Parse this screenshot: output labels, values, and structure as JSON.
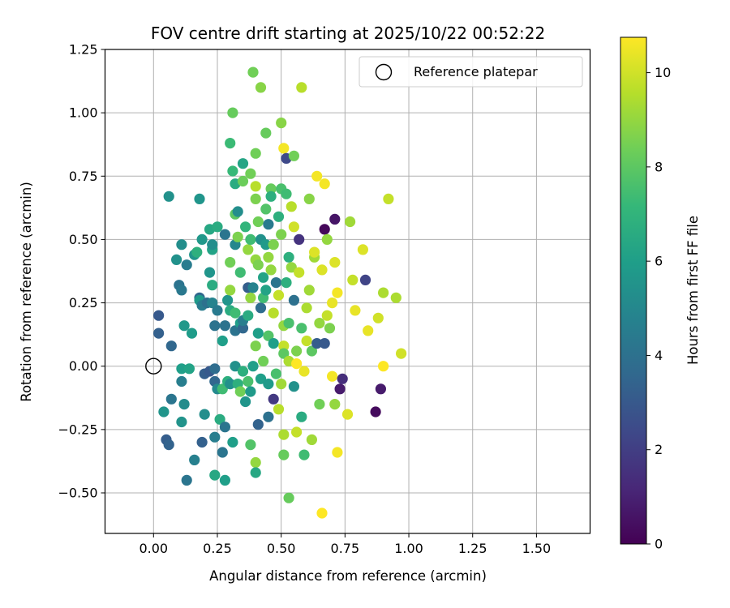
{
  "chart_data": {
    "type": "scatter",
    "title": "FOV centre drift starting at 2025/10/22 00:52:22",
    "xlabel": "Angular distance from reference (arcmin)",
    "ylabel": "Rotation from reference (arcmin)",
    "xlim": [
      -0.19,
      1.71
    ],
    "ylim": [
      -0.66,
      1.25
    ],
    "xticks": [
      0.0,
      0.25,
      0.5,
      0.75,
      1.0,
      1.25,
      1.5
    ],
    "xtick_labels": [
      "0.00",
      "0.25",
      "0.50",
      "0.75",
      "1.00",
      "1.25",
      "1.50"
    ],
    "yticks": [
      -0.5,
      -0.25,
      0.0,
      0.25,
      0.5,
      0.75,
      1.0,
      1.25
    ],
    "ytick_labels": [
      "−0.50",
      "−0.25",
      "0.00",
      "0.25",
      "0.50",
      "0.75",
      "1.00",
      "1.25"
    ],
    "grid": true,
    "legend": {
      "placement": "top-right",
      "entries": [
        "Reference platepar"
      ]
    },
    "reference_point": {
      "x": 0.0,
      "y": 0.0,
      "label": "Reference platepar"
    },
    "colorbar": {
      "label": "Hours from first FF file",
      "min": 0,
      "max": 10.75,
      "ticks": [
        0,
        2,
        4,
        6,
        8,
        10
      ],
      "colormap": "viridis",
      "colormap_stops": [
        "#440154",
        "#482878",
        "#3e4989",
        "#31688e",
        "#26828e",
        "#1f9e89",
        "#35b779",
        "#6ece58",
        "#b5de2b",
        "#fde725"
      ]
    },
    "points": [
      [
        0.02,
        0.2,
        3.0
      ],
      [
        0.02,
        0.13,
        3.3
      ],
      [
        0.04,
        -0.18,
        5.6
      ],
      [
        0.05,
        -0.29,
        3.2
      ],
      [
        0.06,
        -0.31,
        3.4
      ],
      [
        0.06,
        0.67,
        5.4
      ],
      [
        0.07,
        0.08,
        3.6
      ],
      [
        0.07,
        -0.13,
        4.2
      ],
      [
        0.09,
        0.42,
        5.4
      ],
      [
        0.1,
        0.32,
        4.1
      ],
      [
        0.11,
        0.3,
        4.3
      ],
      [
        0.11,
        0.48,
        5.3
      ],
      [
        0.11,
        -0.01,
        6.0
      ],
      [
        0.11,
        -0.06,
        4.6
      ],
      [
        0.11,
        -0.22,
        5.5
      ],
      [
        0.12,
        0.16,
        5.7
      ],
      [
        0.12,
        -0.15,
        5.2
      ],
      [
        0.13,
        0.4,
        4.5
      ],
      [
        0.13,
        -0.45,
        4.2
      ],
      [
        0.14,
        -0.01,
        6.2
      ],
      [
        0.15,
        0.13,
        5.9
      ],
      [
        0.16,
        0.44,
        5.6
      ],
      [
        0.16,
        -0.37,
        4.7
      ],
      [
        0.17,
        0.45,
        6.8
      ],
      [
        0.18,
        0.27,
        3.6
      ],
      [
        0.18,
        0.26,
        5.8
      ],
      [
        0.18,
        0.66,
        5.6
      ],
      [
        0.19,
        0.5,
        5.7
      ],
      [
        0.19,
        -0.3,
        3.3
      ],
      [
        0.19,
        0.24,
        4.5
      ],
      [
        0.2,
        -0.19,
        5.3
      ],
      [
        0.2,
        -0.03,
        3.2
      ],
      [
        0.21,
        0.25,
        4.0
      ],
      [
        0.22,
        0.37,
        5.6
      ],
      [
        0.22,
        -0.02,
        3.0
      ],
      [
        0.22,
        0.54,
        6.4
      ],
      [
        0.23,
        0.32,
        6.6
      ],
      [
        0.23,
        0.25,
        4.8
      ],
      [
        0.23,
        0.46,
        6.2
      ],
      [
        0.23,
        0.48,
        5.3
      ],
      [
        0.24,
        -0.01,
        3.8
      ],
      [
        0.24,
        0.16,
        4.1
      ],
      [
        0.24,
        -0.28,
        4.6
      ],
      [
        0.24,
        -0.43,
        6.4
      ],
      [
        0.24,
        -0.06,
        3.6
      ],
      [
        0.25,
        0.22,
        4.4
      ],
      [
        0.25,
        0.55,
        6.6
      ],
      [
        0.25,
        -0.09,
        5.1
      ],
      [
        0.26,
        -0.21,
        6.6
      ],
      [
        0.27,
        0.1,
        6.0
      ],
      [
        0.27,
        -0.09,
        7.4
      ],
      [
        0.27,
        -0.34,
        4.2
      ],
      [
        0.28,
        -0.45,
        6.0
      ],
      [
        0.28,
        0.52,
        4.2
      ],
      [
        0.28,
        -0.24,
        4.2
      ],
      [
        0.28,
        0.16,
        4.1
      ],
      [
        0.29,
        -0.06,
        6.8
      ],
      [
        0.29,
        0.26,
        5.6
      ],
      [
        0.3,
        -0.07,
        5.4
      ],
      [
        0.3,
        0.22,
        6.6
      ],
      [
        0.3,
        0.88,
        7.3
      ],
      [
        0.3,
        0.41,
        8.4
      ],
      [
        0.3,
        0.3,
        9.0
      ],
      [
        0.31,
        -0.3,
        6.0
      ],
      [
        0.31,
        1.0,
        8.2
      ],
      [
        0.31,
        0.77,
        7.2
      ],
      [
        0.32,
        0.72,
        6.6
      ],
      [
        0.32,
        0.6,
        8.0
      ],
      [
        0.32,
        0.48,
        5.0
      ],
      [
        0.32,
        0.21,
        7.4
      ],
      [
        0.32,
        0.14,
        4.1
      ],
      [
        0.32,
        0.0,
        5.4
      ],
      [
        0.33,
        -0.07,
        6.8
      ],
      [
        0.33,
        0.61,
        5.3
      ],
      [
        0.33,
        0.51,
        8.6
      ],
      [
        0.34,
        -0.1,
        8.4
      ],
      [
        0.34,
        0.37,
        7.4
      ],
      [
        0.34,
        0.17,
        6.0
      ],
      [
        0.35,
        0.73,
        8.3
      ],
      [
        0.35,
        0.15,
        3.6
      ],
      [
        0.35,
        -0.02,
        6.8
      ],
      [
        0.35,
        0.8,
        6.3
      ],
      [
        0.35,
        0.18,
        4.6
      ],
      [
        0.36,
        0.55,
        7.0
      ],
      [
        0.36,
        -0.14,
        5.6
      ],
      [
        0.37,
        0.46,
        9.0
      ],
      [
        0.37,
        0.31,
        3.2
      ],
      [
        0.37,
        0.2,
        6.6
      ],
      [
        0.37,
        -0.06,
        7.6
      ],
      [
        0.38,
        0.27,
        9.0
      ],
      [
        0.38,
        -0.1,
        5.8
      ],
      [
        0.38,
        0.5,
        7.4
      ],
      [
        0.38,
        0.76,
        8.4
      ],
      [
        0.38,
        -0.31,
        7.8
      ],
      [
        0.39,
        1.16,
        8.4
      ],
      [
        0.39,
        0.31,
        4.8
      ],
      [
        0.39,
        0.0,
        6.0
      ],
      [
        0.4,
        0.08,
        8.6
      ],
      [
        0.4,
        -0.38,
        9.0
      ],
      [
        0.4,
        -0.42,
        6.4
      ],
      [
        0.4,
        0.42,
        9.0
      ],
      [
        0.4,
        0.66,
        8.6
      ],
      [
        0.4,
        0.84,
        8.4
      ],
      [
        0.4,
        0.71,
        9.6
      ],
      [
        0.41,
        -0.23,
        3.4
      ],
      [
        0.41,
        0.13,
        6.0
      ],
      [
        0.41,
        0.57,
        8.4
      ],
      [
        0.41,
        0.4,
        8.6
      ],
      [
        0.42,
        1.1,
        8.8
      ],
      [
        0.42,
        0.23,
        3.8
      ],
      [
        0.42,
        0.5,
        5.4
      ],
      [
        0.42,
        -0.05,
        6.0
      ],
      [
        0.43,
        0.27,
        7.4
      ],
      [
        0.43,
        0.02,
        8.4
      ],
      [
        0.43,
        0.35,
        6.2
      ],
      [
        0.44,
        0.92,
        8.2
      ],
      [
        0.44,
        0.48,
        5.8
      ],
      [
        0.44,
        0.3,
        6.2
      ],
      [
        0.44,
        0.62,
        7.8
      ],
      [
        0.45,
        -0.2,
        4.0
      ],
      [
        0.45,
        0.12,
        7.8
      ],
      [
        0.45,
        0.43,
        9.0
      ],
      [
        0.45,
        0.56,
        4.4
      ],
      [
        0.45,
        -0.07,
        5.8
      ],
      [
        0.46,
        0.7,
        8.2
      ],
      [
        0.46,
        0.67,
        6.8
      ],
      [
        0.46,
        0.38,
        9.0
      ],
      [
        0.47,
        -0.13,
        1.8
      ],
      [
        0.47,
        0.48,
        8.6
      ],
      [
        0.47,
        0.21,
        9.6
      ],
      [
        0.47,
        0.09,
        6.0
      ],
      [
        0.48,
        -0.03,
        7.6
      ],
      [
        0.48,
        0.33,
        4.2
      ],
      [
        0.49,
        0.59,
        6.8
      ],
      [
        0.49,
        -0.17,
        9.6
      ],
      [
        0.49,
        0.28,
        9.8
      ],
      [
        0.5,
        0.7,
        7.6
      ],
      [
        0.5,
        0.52,
        8.6
      ],
      [
        0.5,
        0.96,
        8.8
      ],
      [
        0.5,
        -0.07,
        9.2
      ],
      [
        0.51,
        0.86,
        10.6
      ],
      [
        0.51,
        0.08,
        9.8
      ],
      [
        0.51,
        -0.27,
        9.4
      ],
      [
        0.51,
        0.16,
        9.0
      ],
      [
        0.51,
        0.05,
        8.0
      ],
      [
        0.51,
        -0.35,
        8.2
      ],
      [
        0.52,
        0.82,
        2.4
      ],
      [
        0.52,
        0.68,
        7.4
      ],
      [
        0.52,
        0.33,
        6.8
      ],
      [
        0.53,
        -0.52,
        8.2
      ],
      [
        0.53,
        0.43,
        6.8
      ],
      [
        0.53,
        0.17,
        7.6
      ],
      [
        0.53,
        0.02,
        9.4
      ],
      [
        0.54,
        0.39,
        9.0
      ],
      [
        0.54,
        0.63,
        9.6
      ],
      [
        0.55,
        0.83,
        8.4
      ],
      [
        0.55,
        0.26,
        4.0
      ],
      [
        0.55,
        -0.08,
        5.4
      ],
      [
        0.55,
        0.55,
        10.0
      ],
      [
        0.56,
        -0.26,
        9.8
      ],
      [
        0.56,
        0.06,
        8.6
      ],
      [
        0.56,
        0.01,
        10.8
      ],
      [
        0.57,
        0.5,
        1.6
      ],
      [
        0.57,
        0.37,
        9.8
      ],
      [
        0.58,
        1.1,
        9.6
      ],
      [
        0.58,
        0.15,
        7.6
      ],
      [
        0.58,
        -0.2,
        6.6
      ],
      [
        0.59,
        -0.35,
        7.4
      ],
      [
        0.59,
        -0.02,
        10.4
      ],
      [
        0.6,
        0.23,
        9.4
      ],
      [
        0.6,
        0.1,
        9.8
      ],
      [
        0.61,
        0.66,
        8.8
      ],
      [
        0.61,
        0.3,
        9.2
      ],
      [
        0.62,
        0.06,
        8.0
      ],
      [
        0.62,
        -0.29,
        9.2
      ],
      [
        0.63,
        0.43,
        9.2
      ],
      [
        0.63,
        0.45,
        10.2
      ],
      [
        0.64,
        0.09,
        3.2
      ],
      [
        0.64,
        0.75,
        10.6
      ],
      [
        0.65,
        0.17,
        9.0
      ],
      [
        0.65,
        -0.15,
        8.4
      ],
      [
        0.66,
        0.38,
        10.2
      ],
      [
        0.66,
        -0.58,
        10.8
      ],
      [
        0.67,
        0.09,
        3.0
      ],
      [
        0.67,
        0.54,
        0.2
      ],
      [
        0.67,
        0.72,
        10.6
      ],
      [
        0.68,
        0.2,
        9.8
      ],
      [
        0.68,
        0.5,
        9.0
      ],
      [
        0.69,
        0.15,
        8.6
      ],
      [
        0.7,
        -0.04,
        10.6
      ],
      [
        0.7,
        0.25,
        10.4
      ],
      [
        0.71,
        0.41,
        10.2
      ],
      [
        0.71,
        -0.15,
        9.0
      ],
      [
        0.71,
        0.58,
        0.6
      ],
      [
        0.72,
        0.29,
        10.6
      ],
      [
        0.72,
        -0.34,
        10.6
      ],
      [
        0.73,
        -0.09,
        0.8
      ],
      [
        0.74,
        -0.05,
        1.4
      ],
      [
        0.76,
        -0.19,
        10.2
      ],
      [
        0.77,
        0.57,
        9.2
      ],
      [
        0.78,
        0.34,
        9.8
      ],
      [
        0.79,
        0.22,
        10.4
      ],
      [
        0.82,
        0.46,
        10.2
      ],
      [
        0.83,
        0.34,
        2.2
      ],
      [
        0.84,
        0.14,
        10.4
      ],
      [
        0.87,
        -0.18,
        0.3
      ],
      [
        0.88,
        0.19,
        10.0
      ],
      [
        0.89,
        -0.09,
        0.8
      ],
      [
        0.9,
        0.29,
        9.4
      ],
      [
        0.9,
        0.0,
        10.8
      ],
      [
        0.92,
        0.66,
        9.8
      ],
      [
        0.95,
        0.27,
        9.4
      ],
      [
        0.97,
        0.05,
        10.0
      ]
    ]
  }
}
